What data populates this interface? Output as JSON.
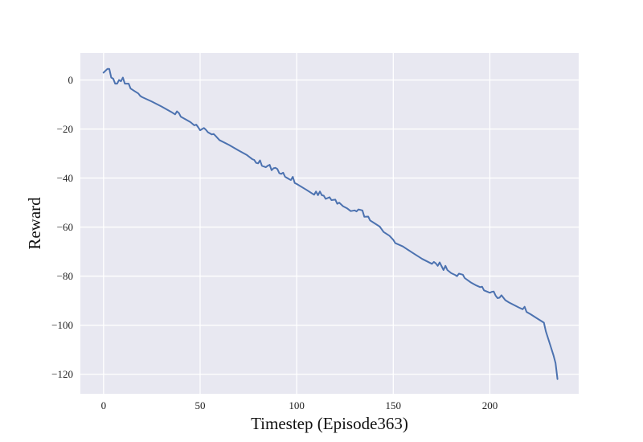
{
  "chart_data": {
    "type": "line",
    "title": "",
    "xlabel": "Timestep (Episode363)",
    "ylabel": "Reward",
    "xlim": [
      -12,
      246
    ],
    "ylim": [
      -128,
      11
    ],
    "x_ticks": [
      0,
      50,
      100,
      150,
      200
    ],
    "y_ticks": [
      0,
      -20,
      -40,
      -60,
      -80,
      -100,
      -120
    ],
    "grid": true,
    "colors": {
      "plot_background": "#e8e8f1",
      "grid": "#ffffff",
      "line": "#4c72b0"
    },
    "series": [
      {
        "name": "Reward",
        "points": [
          [
            0,
            3
          ],
          [
            2,
            4.5
          ],
          [
            3,
            4.5
          ],
          [
            4,
            1
          ],
          [
            5,
            0.5
          ],
          [
            6,
            -1.5
          ],
          [
            7,
            -1.5
          ],
          [
            8,
            0
          ],
          [
            9,
            -0.5
          ],
          [
            10,
            1
          ],
          [
            11,
            -1.5
          ],
          [
            12,
            -1.5
          ],
          [
            13,
            -1.5
          ],
          [
            14,
            -3.5
          ],
          [
            16,
            -4.5
          ],
          [
            18,
            -5.5
          ],
          [
            19,
            -6.5
          ],
          [
            20,
            -7
          ],
          [
            25,
            -8.8
          ],
          [
            30,
            -10.8
          ],
          [
            35,
            -13
          ],
          [
            37,
            -14
          ],
          [
            38,
            -12.8
          ],
          [
            39,
            -13.5
          ],
          [
            40,
            -15
          ],
          [
            43,
            -16.3
          ],
          [
            45,
            -17.2
          ],
          [
            47,
            -18.5
          ],
          [
            48,
            -18.2
          ],
          [
            49,
            -19.3
          ],
          [
            50,
            -20.5
          ],
          [
            51,
            -20
          ],
          [
            52,
            -19.6
          ],
          [
            53,
            -20.3
          ],
          [
            54,
            -21.3
          ],
          [
            56,
            -22.2
          ],
          [
            57,
            -22
          ],
          [
            58,
            -22.8
          ],
          [
            60,
            -24.5
          ],
          [
            65,
            -26.5
          ],
          [
            70,
            -28.8
          ],
          [
            74,
            -30.5
          ],
          [
            77,
            -32.3
          ],
          [
            78,
            -32.6
          ],
          [
            79,
            -33.8
          ],
          [
            80,
            -34
          ],
          [
            81,
            -32.8
          ],
          [
            82,
            -35
          ],
          [
            84,
            -35.6
          ],
          [
            85,
            -35
          ],
          [
            86,
            -34.6
          ],
          [
            87,
            -36.8
          ],
          [
            88,
            -36
          ],
          [
            89,
            -35.8
          ],
          [
            90,
            -36.3
          ],
          [
            91,
            -38
          ],
          [
            92,
            -38.3
          ],
          [
            93,
            -37.8
          ],
          [
            94,
            -39.5
          ],
          [
            96,
            -40.4
          ],
          [
            97,
            -40.8
          ],
          [
            98,
            -39.5
          ],
          [
            99,
            -42
          ],
          [
            100,
            -42.4
          ],
          [
            105,
            -44.8
          ],
          [
            109,
            -46.8
          ],
          [
            110,
            -45.5
          ],
          [
            111,
            -47
          ],
          [
            112,
            -45.5
          ],
          [
            113,
            -47
          ],
          [
            114,
            -47.2
          ],
          [
            115,
            -48.5
          ],
          [
            117,
            -47.8
          ],
          [
            118,
            -49
          ],
          [
            120,
            -48.8
          ],
          [
            121,
            -50.5
          ],
          [
            122,
            -50
          ],
          [
            124,
            -51.5
          ],
          [
            126,
            -52.3
          ],
          [
            128,
            -53.5
          ],
          [
            130,
            -53.2
          ],
          [
            131,
            -53.6
          ],
          [
            132,
            -52.8
          ],
          [
            134,
            -53.2
          ],
          [
            135,
            -55.8
          ],
          [
            137,
            -55.7
          ],
          [
            138,
            -57.3
          ],
          [
            140,
            -58.3
          ],
          [
            143,
            -59.8
          ],
          [
            145,
            -62
          ],
          [
            148,
            -63.5
          ],
          [
            150,
            -65.2
          ],
          [
            151,
            -66.5
          ],
          [
            155,
            -67.9
          ],
          [
            160,
            -70.5
          ],
          [
            165,
            -73
          ],
          [
            170,
            -75
          ],
          [
            171,
            -74.2
          ],
          [
            172,
            -74.8
          ],
          [
            173,
            -75.8
          ],
          [
            174,
            -74.4
          ],
          [
            176,
            -77.5
          ],
          [
            177,
            -75.8
          ],
          [
            178,
            -77.5
          ],
          [
            180,
            -78.8
          ],
          [
            182,
            -79.5
          ],
          [
            183,
            -80
          ],
          [
            184,
            -79
          ],
          [
            186,
            -79.4
          ],
          [
            187,
            -80.8
          ],
          [
            190,
            -82.5
          ],
          [
            193,
            -83.8
          ],
          [
            195,
            -84.5
          ],
          [
            196,
            -84.3
          ],
          [
            197,
            -85.8
          ],
          [
            200,
            -86.8
          ],
          [
            201,
            -86.4
          ],
          [
            202,
            -86.3
          ],
          [
            203,
            -88
          ],
          [
            204,
            -89
          ],
          [
            205,
            -88.8
          ],
          [
            206,
            -87.8
          ],
          [
            208,
            -89.8
          ],
          [
            210,
            -90.8
          ],
          [
            215,
            -92.8
          ],
          [
            217,
            -93.5
          ],
          [
            218,
            -92.5
          ],
          [
            219,
            -94.6
          ],
          [
            221,
            -95.5
          ],
          [
            225,
            -97.5
          ],
          [
            228,
            -99
          ],
          [
            229,
            -102.5
          ],
          [
            231,
            -107.5
          ],
          [
            233,
            -112.5
          ],
          [
            234,
            -115.5
          ],
          [
            235,
            -122
          ]
        ]
      }
    ]
  }
}
